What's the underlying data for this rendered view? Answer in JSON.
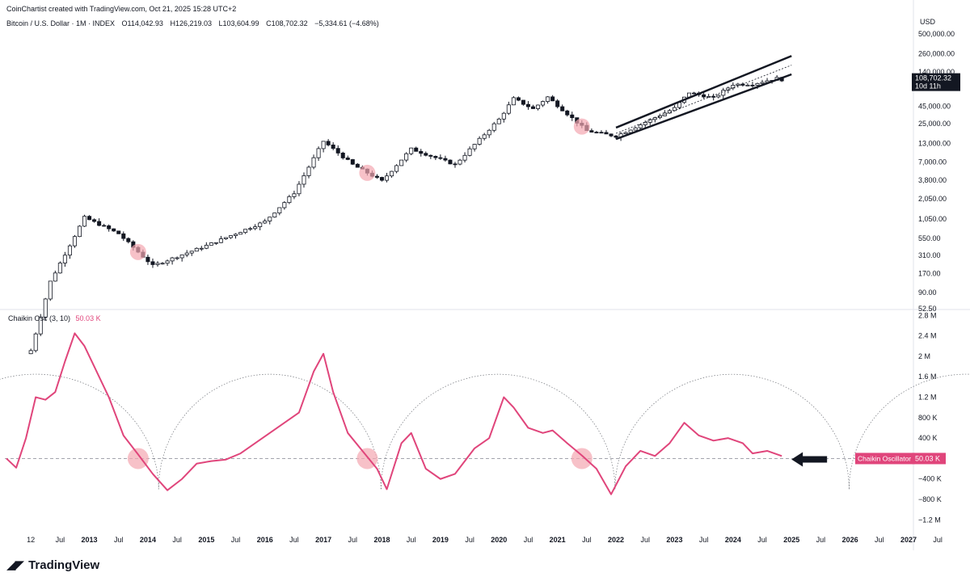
{
  "header": {
    "credit": "CoinChartist created with TradingView.com, Oct 21, 2025 15:28 UTC+2",
    "symbol": "Bitcoin / U.S. Dollar · 1M · INDEX",
    "open": "O114,042.93",
    "high": "H126,219.03",
    "low": "L103,604.99",
    "close": "C108,702.32",
    "change": "−5,334.61 (−4.68%)"
  },
  "price_axis": {
    "unit": "USD",
    "ticks": [
      "500,000.00",
      "260,000.00",
      "140,000.00",
      "45,000.00",
      "25,000.00",
      "13,000.00",
      "7,000.00",
      "3,800.00",
      "2,050.00",
      "1,050.00",
      "550.00",
      "310.00",
      "170.00",
      "90.00",
      "52.50"
    ],
    "last_price": "108,702.32",
    "countdown": "10d 11h"
  },
  "oscillator": {
    "name": "Chaikin Osc (3, 10)",
    "value": "50.03 K",
    "label": "Chaikin Oscillator",
    "label_value": "50.03 K",
    "ticks": [
      "2.8 M",
      "2.4 M",
      "2 M",
      "1.6 M",
      "1.2 M",
      "800 K",
      "400 K",
      "−400 K",
      "−800 K",
      "−1.2 M"
    ]
  },
  "time_axis": {
    "labels": [
      "12",
      "Jul",
      "2013",
      "Jul",
      "2014",
      "Jul",
      "2015",
      "Jul",
      "2016",
      "Jul",
      "2017",
      "Jul",
      "2018",
      "Jul",
      "2019",
      "Jul",
      "2020",
      "Jul",
      "2021",
      "Jul",
      "2022",
      "Jul",
      "2023",
      "Jul",
      "2024",
      "Jul",
      "2025",
      "Jul",
      "2026",
      "Jul",
      "2027",
      "Jul"
    ]
  },
  "footer": {
    "brand": "TradingView"
  },
  "colors": {
    "oscillator_line": "#e0457b",
    "highlight_circle": "#f4a6b0",
    "candle_up": "#ffffff",
    "candle_down": "#131722",
    "channel": "#131722"
  },
  "chart_data": [
    {
      "type": "candlestick",
      "title": "Bitcoin / U.S. Dollar · 1M · INDEX",
      "scale": "log",
      "ylim": [
        52.5,
        500000
      ],
      "x_range": [
        "2012-07",
        "2027-12"
      ],
      "anchors": [
        {
          "date": "2012-12",
          "close": 13
        },
        {
          "date": "2013-04",
          "close": 130
        },
        {
          "date": "2013-11",
          "close": 1100
        },
        {
          "date": "2014-06",
          "close": 640
        },
        {
          "date": "2015-01",
          "close": 220
        },
        {
          "date": "2015-12",
          "close": 430
        },
        {
          "date": "2016-12",
          "close": 960
        },
        {
          "date": "2017-06",
          "close": 2500
        },
        {
          "date": "2017-12",
          "close": 14000
        },
        {
          "date": "2018-06",
          "close": 6400
        },
        {
          "date": "2018-12",
          "close": 3700
        },
        {
          "date": "2019-06",
          "close": 10800
        },
        {
          "date": "2020-03",
          "close": 6400
        },
        {
          "date": "2020-12",
          "close": 29000
        },
        {
          "date": "2021-03",
          "close": 58000
        },
        {
          "date": "2021-07",
          "close": 41000
        },
        {
          "date": "2021-10",
          "close": 61000
        },
        {
          "date": "2022-06",
          "close": 19800
        },
        {
          "date": "2022-12",
          "close": 16500
        },
        {
          "date": "2023-12",
          "close": 42000
        },
        {
          "date": "2024-03",
          "close": 71000
        },
        {
          "date": "2024-08",
          "close": 59000
        },
        {
          "date": "2024-12",
          "close": 93000
        },
        {
          "date": "2025-04",
          "close": 94000
        },
        {
          "date": "2025-09",
          "close": 114000
        },
        {
          "date": "2025-10",
          "close": 108702
        }
      ],
      "annotations": {
        "channel_start": "2022-12",
        "channel_end": "2025-12",
        "highlight_dates": [
          "2014-10",
          "2018-09",
          "2022-05"
        ]
      }
    },
    {
      "type": "line",
      "title": "Chaikin Osc (3, 10)",
      "ylim": [
        -1400000,
        2900000
      ],
      "series": [
        {
          "name": "Chaikin Osc (3, 10)",
          "points": [
            [
              "2012-07",
              0
            ],
            [
              "2012-09",
              -180000
            ],
            [
              "2012-11",
              400000
            ],
            [
              "2013-01",
              1200000
            ],
            [
              "2013-03",
              1150000
            ],
            [
              "2013-05",
              1300000
            ],
            [
              "2013-07",
              1900000
            ],
            [
              "2013-09",
              2450000
            ],
            [
              "2013-11",
              2200000
            ],
            [
              "2014-01",
              1800000
            ],
            [
              "2014-04",
              1200000
            ],
            [
              "2014-07",
              450000
            ],
            [
              "2014-10",
              80000
            ],
            [
              "2015-01",
              -300000
            ],
            [
              "2015-04",
              -620000
            ],
            [
              "2015-07",
              -400000
            ],
            [
              "2015-10",
              -100000
            ],
            [
              "2016-01",
              -50000
            ],
            [
              "2016-04",
              -20000
            ],
            [
              "2016-07",
              100000
            ],
            [
              "2016-10",
              300000
            ],
            [
              "2017-01",
              500000
            ],
            [
              "2017-04",
              700000
            ],
            [
              "2017-07",
              900000
            ],
            [
              "2017-10",
              1700000
            ],
            [
              "2017-12",
              2050000
            ],
            [
              "2018-02",
              1300000
            ],
            [
              "2018-05",
              500000
            ],
            [
              "2018-08",
              150000
            ],
            [
              "2018-11",
              -200000
            ],
            [
              "2019-01",
              -600000
            ],
            [
              "2019-04",
              300000
            ],
            [
              "2019-06",
              500000
            ],
            [
              "2019-09",
              -200000
            ],
            [
              "2019-12",
              -400000
            ],
            [
              "2020-03",
              -300000
            ],
            [
              "2020-07",
              200000
            ],
            [
              "2020-10",
              400000
            ],
            [
              "2021-01",
              1200000
            ],
            [
              "2021-03",
              1000000
            ],
            [
              "2021-06",
              600000
            ],
            [
              "2021-09",
              500000
            ],
            [
              "2021-11",
              550000
            ],
            [
              "2022-02",
              300000
            ],
            [
              "2022-05",
              60000
            ],
            [
              "2022-08",
              -200000
            ],
            [
              "2022-11",
              -700000
            ],
            [
              "2023-02",
              -150000
            ],
            [
              "2023-05",
              150000
            ],
            [
              "2023-08",
              50000
            ],
            [
              "2023-11",
              300000
            ],
            [
              "2024-02",
              700000
            ],
            [
              "2024-05",
              450000
            ],
            [
              "2024-08",
              350000
            ],
            [
              "2024-11",
              400000
            ],
            [
              "2025-02",
              300000
            ],
            [
              "2025-04",
              100000
            ],
            [
              "2025-07",
              150000
            ],
            [
              "2025-10",
              50030
            ]
          ]
        }
      ],
      "annotations": {
        "highlight_dates": [
          "2014-10",
          "2018-09",
          "2022-05"
        ]
      }
    }
  ]
}
